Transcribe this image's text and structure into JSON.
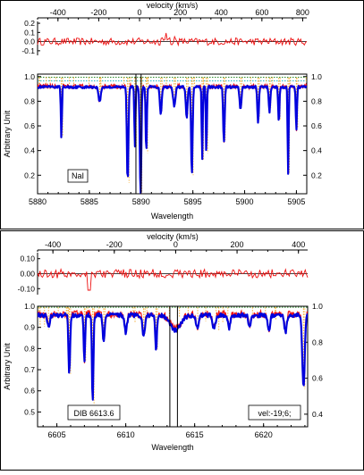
{
  "colors": {
    "spectrum": "#0000dd",
    "model": "#ee1111",
    "residual": "#ee1111",
    "dotted_components": "#f5a623",
    "dotted_telluric": "#2a8a2a",
    "dotted_continuum": "#19b3c7",
    "frame": "#000000"
  },
  "chart_data": [
    {
      "type": "line",
      "panel": "NaI",
      "top_axis_label": "velocity (km/s)",
      "velocity_ticks": [
        -400,
        -200,
        0,
        200,
        400,
        600,
        800
      ],
      "velocity_range": [
        -500,
        820
      ],
      "residual_ticks": [
        0.2,
        0.1,
        0.0,
        -0.1
      ],
      "residual_tick_labels": [
        "0.2",
        "0.1",
        "0.0",
        "-0.1"
      ],
      "residual_range": [
        -0.15,
        0.22
      ],
      "ylabel": "Arbitrary Unit",
      "xlabel": "Wavelength",
      "x_ticks": [
        5880,
        5885,
        5890,
        5895,
        5900,
        5905
      ],
      "x_range": [
        5880,
        5906
      ],
      "y_range": [
        0.05,
        1.02
      ],
      "left_y_ticks": [
        1.0,
        0.8,
        0.6,
        0.4,
        0.2
      ],
      "left_y_tick_labels": [
        "1.0",
        "0.8",
        "0.6",
        "0.4",
        "0.2"
      ],
      "right_y_ticks": [
        1.0,
        0.8,
        0.6,
        0.4,
        0.2
      ],
      "right_y_tick_labels": [
        "1.0",
        "0.8",
        "0.6",
        "0.4",
        "0.2"
      ],
      "label_box": "NaI",
      "ism_lines": [
        5889.5,
        5890.0
      ],
      "absorption_lines": [
        {
          "x": 5882.3,
          "depth": 0.42,
          "width": 0.07
        },
        {
          "x": 5886.0,
          "depth": 0.12,
          "width": 0.15
        },
        {
          "x": 5888.7,
          "depth": 0.78,
          "width": 0.1
        },
        {
          "x": 5889.4,
          "depth": 0.5,
          "width": 0.07
        },
        {
          "x": 5889.95,
          "depth": 0.9,
          "width": 0.1
        },
        {
          "x": 5890.5,
          "depth": 0.55,
          "width": 0.08
        },
        {
          "x": 5891.9,
          "depth": 0.22,
          "width": 0.12
        },
        {
          "x": 5893.2,
          "depth": 0.15,
          "width": 0.15
        },
        {
          "x": 5894.4,
          "depth": 0.25,
          "width": 0.12
        },
        {
          "x": 5894.9,
          "depth": 0.72,
          "width": 0.1
        },
        {
          "x": 5895.9,
          "depth": 0.6,
          "width": 0.07
        },
        {
          "x": 5896.3,
          "depth": 0.55,
          "width": 0.07
        },
        {
          "x": 5898.0,
          "depth": 0.45,
          "width": 0.1
        },
        {
          "x": 5899.6,
          "depth": 0.18,
          "width": 0.12
        },
        {
          "x": 5901.3,
          "depth": 0.28,
          "width": 0.1
        },
        {
          "x": 5902.4,
          "depth": 0.2,
          "width": 0.1
        },
        {
          "x": 5903.3,
          "depth": 0.3,
          "width": 0.08
        },
        {
          "x": 5904.2,
          "depth": 0.7,
          "width": 0.07
        },
        {
          "x": 5905.0,
          "depth": 0.35,
          "width": 0.08
        }
      ],
      "continuum_level": 0.9
    },
    {
      "type": "line",
      "panel": "DIB 6613.6",
      "top_axis_label": "velocity (km/s)",
      "velocity_ticks": [
        -400,
        -200,
        0,
        200,
        400
      ],
      "velocity_range": [
        -450,
        430
      ],
      "residual_ticks": [
        0.1,
        0.0,
        -0.1
      ],
      "residual_tick_labels": [
        "0.10",
        "0.00",
        "-0.10"
      ],
      "residual_range": [
        -0.14,
        0.14
      ],
      "ylabel": "Arbitrary Unit",
      "xlabel": "Wavelength",
      "x_ticks": [
        6605,
        6610,
        6615,
        6620
      ],
      "x_range": [
        6603.6,
        6623.2
      ],
      "y_range": [
        0.43,
        1.0
      ],
      "left_y_ticks": [
        1.0,
        0.9,
        0.8,
        0.7,
        0.6,
        0.5
      ],
      "left_y_tick_labels": [
        "1.0",
        "0.9",
        "0.8",
        "0.7",
        "0.6",
        "0.5"
      ],
      "right_y_ticks": [
        1.0,
        0.8,
        0.6,
        0.4
      ],
      "right_y_tick_labels": [
        "1.0",
        "0.8",
        "0.6",
        "0.4"
      ],
      "right_y_range": [
        0.33,
        1.0
      ],
      "label_box": "DIB 6613.6",
      "vel_box": "vel:-19;6;",
      "ism_lines": [
        6613.2,
        6613.75
      ],
      "absorption_lines": [
        {
          "x": 6604.4,
          "depth": 0.06,
          "width": 0.12
        },
        {
          "x": 6605.9,
          "depth": 0.28,
          "width": 0.08
        },
        {
          "x": 6607.0,
          "depth": 0.22,
          "width": 0.07
        },
        {
          "x": 6607.6,
          "depth": 0.42,
          "width": 0.07
        },
        {
          "x": 6608.4,
          "depth": 0.12,
          "width": 0.1
        },
        {
          "x": 6610.0,
          "depth": 0.08,
          "width": 0.12
        },
        {
          "x": 6611.3,
          "depth": 0.1,
          "width": 0.12
        },
        {
          "x": 6612.2,
          "depth": 0.17,
          "width": 0.08
        },
        {
          "x": 6613.6,
          "depth": 0.07,
          "width": 0.55
        },
        {
          "x": 6615.2,
          "depth": 0.06,
          "width": 0.15
        },
        {
          "x": 6616.4,
          "depth": 0.06,
          "width": 0.15
        },
        {
          "x": 6617.5,
          "depth": 0.06,
          "width": 0.12
        },
        {
          "x": 6619.0,
          "depth": 0.06,
          "width": 0.12
        },
        {
          "x": 6620.4,
          "depth": 0.07,
          "width": 0.12
        },
        {
          "x": 6621.6,
          "depth": 0.08,
          "width": 0.12
        },
        {
          "x": 6622.9,
          "depth": 0.35,
          "width": 0.12
        }
      ],
      "continuum_level": 0.95
    }
  ]
}
